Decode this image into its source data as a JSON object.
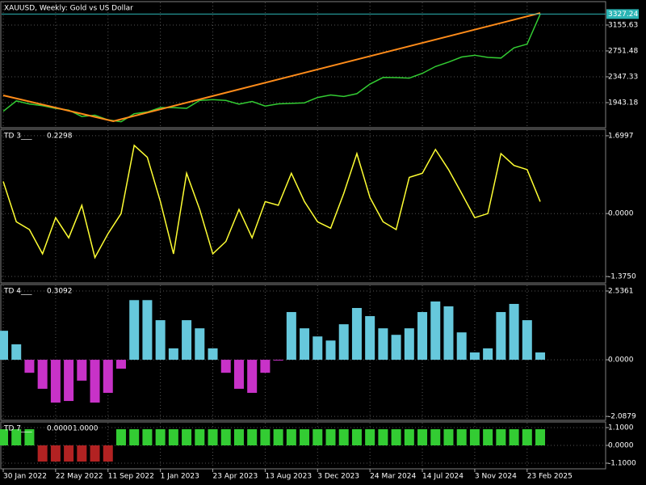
{
  "chart_data": [
    {
      "type": "line",
      "title": "XAUUSD, Weekly:  Gold vs US Dollar",
      "grid": true,
      "ylim": [
        1564,
        3509
      ],
      "yticks": [
        1943.18,
        2347.33,
        2751.48,
        3155.63
      ],
      "series": [
        {
          "color": "#33cc33",
          "values": [
            1808,
            1970,
            1923,
            1896,
            1853,
            1827,
            1727,
            1747,
            1674,
            1645,
            1770,
            1797,
            1865,
            1865,
            1854,
            1978,
            1990,
            1977,
            1920,
            1962,
            1890,
            1924,
            1932,
            1940,
            2024,
            2063,
            2040,
            2083,
            2233,
            2337,
            2334,
            2326,
            2401,
            2508,
            2577,
            2656,
            2684,
            2650,
            2640,
            2800,
            2858,
            3327.24
          ]
        }
      ],
      "trendline": {
        "color": "#ff8c1a",
        "points": [
          [
            0,
            2057
          ],
          [
            8.4,
            1653
          ],
          [
            41,
            3343
          ]
        ]
      },
      "current_price": 3327.24,
      "current_price_color": "#2bb5b5"
    },
    {
      "type": "line",
      "title": "TD 3___",
      "header_values": [
        0.2298
      ],
      "grid": true,
      "ylim": [
        -1.4975,
        1.822
      ],
      "yticks": [
        1.6997,
        {
          "value": 0,
          "label": "0.0000"
        },
        {
          "value": -1.375,
          "label": "-1.3750"
        }
      ],
      "series": [
        {
          "color": "#ffff33",
          "values": [
            0.7,
            -0.18,
            -0.35,
            -0.88,
            -0.09,
            -0.53,
            0.18,
            -0.96,
            -0.44,
            0,
            1.49,
            1.23,
            0.26,
            -0.88,
            0.88,
            0.09,
            -0.88,
            -0.61,
            0.09,
            -0.53,
            0.26,
            0.18,
            0.88,
            0.26,
            -0.18,
            -0.32,
            0.44,
            1.31,
            0.35,
            -0.18,
            -0.35,
            0.79,
            0.88,
            1.4,
            0.96,
            0.44,
            -0.09,
            0,
            1.31,
            1.05,
            0.96,
            0.26
          ]
        }
      ]
    },
    {
      "type": "histogram",
      "title": "TD 4___",
      "header_values": [
        0.3092
      ],
      "grid": true,
      "ylim": [
        -2.204,
        2.745
      ],
      "yticks": [
        2.5361,
        {
          "value": 0,
          "label": "0.0000"
        },
        -2.0879
      ],
      "pos_color": "#66c8dc",
      "neg_color": "#c832c8",
      "values": [
        1.07,
        0.57,
        -0.48,
        -1.07,
        -1.58,
        -1.52,
        -0.77,
        -1.58,
        -1.22,
        -0.33,
        2.2,
        2.2,
        1.46,
        0.42,
        1.46,
        1.16,
        0.42,
        -0.48,
        -1.07,
        -1.22,
        -0.48,
        -0.03,
        1.76,
        1.16,
        0.86,
        0.71,
        1.31,
        1.91,
        1.61,
        1.16,
        0.92,
        1.16,
        1.76,
        2.15,
        1.97,
        1.01,
        0.27,
        0.42,
        1.76,
        2.06,
        1.46,
        0.27
      ]
    },
    {
      "type": "histogram",
      "title": "TD 7___",
      "header_values": [
        {
          "value": 0,
          "label": "0.0000"
        },
        {
          "value": 1,
          "label": "1.0000"
        }
      ],
      "grid": true,
      "ylim": [
        -1.4,
        1.4
      ],
      "yticks": [
        {
          "value": 1.1,
          "label": "1.1000"
        },
        {
          "value": 0,
          "label": "0.0000"
        },
        {
          "value": -1.1,
          "label": "-1.1000"
        }
      ],
      "pos_color": "#33cc33",
      "neg_color": "#b22222",
      "values": [
        1,
        1,
        1,
        -1,
        -1,
        -1,
        -1,
        -1,
        -1,
        1,
        1,
        1,
        1,
        1,
        1,
        1,
        1,
        1,
        1,
        1,
        1,
        1,
        1,
        1,
        1,
        1,
        1,
        1,
        1,
        1,
        1,
        1,
        1,
        1,
        1,
        1,
        1,
        1,
        1,
        1,
        1,
        1
      ],
      "categories": [
        "30 Jan 2022",
        null,
        null,
        null,
        "22 May 2022",
        null,
        null,
        null,
        "11 Sep 2022",
        null,
        null,
        null,
        "1 Jan 2023",
        null,
        null,
        null,
        "23 Apr 2023",
        null,
        null,
        null,
        "13 Aug 2023",
        null,
        null,
        null,
        "3 Dec 2023",
        null,
        null,
        null,
        "24 Mar 2024",
        null,
        null,
        null,
        "14 Jul 2024",
        null,
        null,
        null,
        "3 Nov 2024",
        null,
        null,
        null,
        "23 Feb 2025",
        null
      ]
    }
  ]
}
